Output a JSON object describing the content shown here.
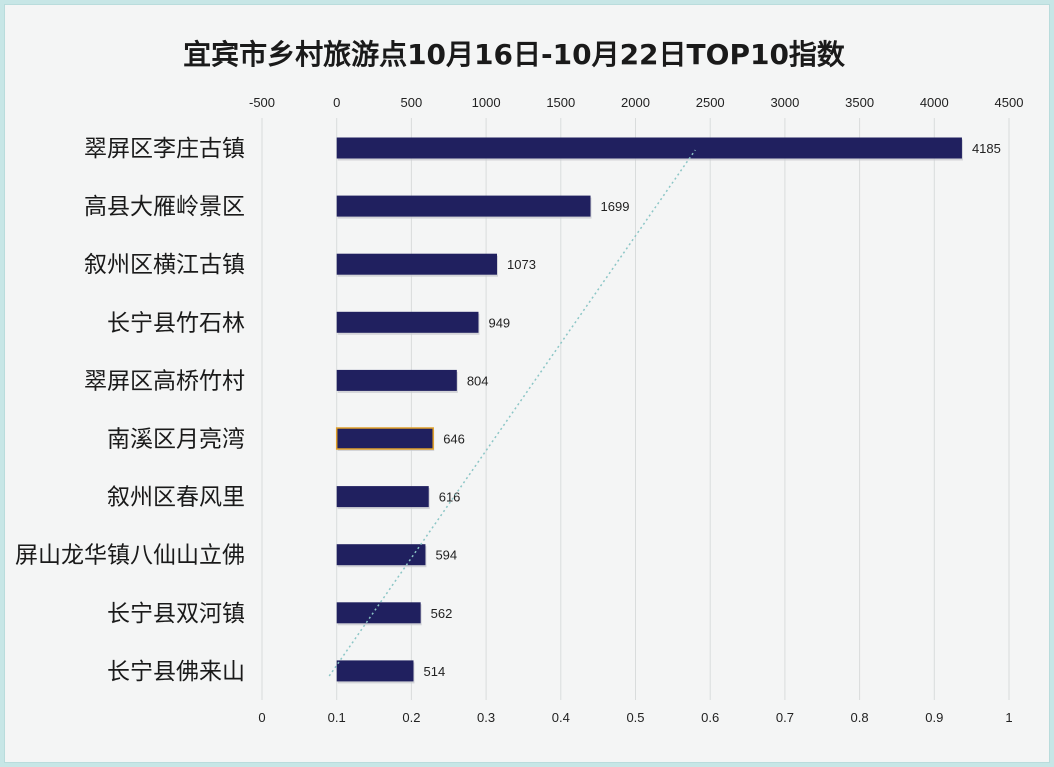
{
  "chart_data": {
    "type": "bar",
    "orientation": "horizontal",
    "title": "宜宾市乡村旅游点10月16日-10月22日TOP10指数",
    "categories": [
      "翠屏区李庄古镇",
      "高县大雁岭景区",
      "叙州区横江古镇",
      "长宁县竹石林",
      "翠屏区高桥竹村",
      "南溪区月亮湾",
      "叙州区春风里",
      "屏山龙华镇八仙山立佛",
      "长宁县双河镇",
      "长宁县佛来山"
    ],
    "values": [
      4185,
      1699,
      1073,
      949,
      804,
      646,
      616,
      594,
      562,
      514
    ],
    "data_labels": [
      "4185",
      "1699",
      "1073",
      "949",
      "804",
      "646",
      "616",
      "594",
      "562",
      "514"
    ],
    "x_axis_top": {
      "range": [
        -500,
        4500
      ],
      "ticks": [
        "-500",
        "0",
        "500",
        "1000",
        "1500",
        "2000",
        "2500",
        "3000",
        "3500",
        "4000",
        "4500"
      ]
    },
    "x_axis_bottom": {
      "range": [
        0,
        1
      ],
      "ticks": [
        "0",
        "0.1",
        "0.2",
        "0.3",
        "0.4",
        "0.5",
        "0.6",
        "0.7",
        "0.8",
        "0.9",
        "1"
      ]
    },
    "secondary_series": {
      "type": "line",
      "style": "dotted",
      "x_bottom": [
        0.09,
        0.58
      ]
    },
    "grid": true,
    "legend": "none",
    "colors": {
      "bar": "#20205f",
      "highlight_border": "#e0a02a",
      "line": "#8cc6c6",
      "background": "#f4f5f5"
    },
    "highlight_index": 5
  }
}
